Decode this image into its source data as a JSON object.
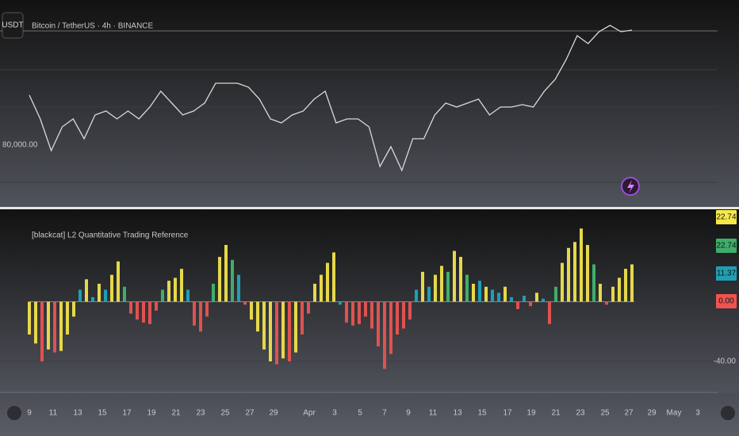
{
  "header": {
    "symbol_button": "USDT",
    "title": "Bitcoin / TetherUS · 4h · BINANCE"
  },
  "price_chart": {
    "type": "line",
    "color": "#d9d9d9",
    "values": [
      86175,
      83234,
      79312,
      82254,
      83234,
      80783,
      83724,
      84214,
      83234,
      84214,
      83234,
      84705,
      86665,
      85195,
      83724,
      84214,
      85195,
      87644,
      87644,
      87644,
      87156,
      85685,
      83234,
      82744,
      83724,
      84214,
      85685,
      86665,
      82744,
      83234,
      83234,
      82254,
      77352,
      79803,
      76861,
      80783,
      80783,
      83724,
      85195,
      84705,
      85195,
      85685,
      83724,
      84705,
      84705,
      84999,
      84705,
      86665,
      88136,
      90587,
      93528,
      92548,
      94019,
      94803,
      94019,
      94215
    ],
    "ylim": [
      72250,
      97940
    ],
    "yticks": [
      {
        "value": 80000,
        "label": "80,000.00"
      }
    ]
  },
  "indicator": {
    "type": "bar",
    "title": "[blackcat] L2 Quantitative Trading Reference",
    "values": [
      -22,
      -28,
      -40,
      -32,
      -34,
      -33,
      -22,
      -10,
      8,
      15,
      3,
      12,
      8,
      18,
      27,
      10,
      -8,
      -12,
      -14,
      -15,
      -6,
      8,
      14,
      16,
      22,
      8,
      -16,
      -20,
      -10,
      12,
      30,
      38,
      28,
      18,
      -2,
      -12,
      -20,
      -32,
      -40,
      -42,
      -38,
      -40,
      -34,
      -22,
      -8,
      12,
      18,
      26,
      33,
      -2,
      -14,
      -16,
      -15,
      -10,
      -18,
      -30,
      -45,
      -35,
      -22,
      -18,
      -12,
      8,
      20,
      10,
      18,
      24,
      20,
      34,
      30,
      18,
      12,
      14,
      10,
      8,
      6,
      10,
      3,
      -5,
      4,
      -3,
      6,
      2,
      -15,
      10,
      26,
      36,
      40,
      49,
      38,
      25,
      12,
      -2,
      10,
      16,
      22,
      25
    ],
    "colors": [
      "#e6d84a",
      "#e6d84a",
      "#e0524f",
      "#e6d84a",
      "#e0524f",
      "#e6d84a",
      "#e6d84a",
      "#e6d84a",
      "#1e9fb4",
      "#e6d84a",
      "#1e9fb4",
      "#e6d84a",
      "#1e9fb4",
      "#e6d84a",
      "#e6d84a",
      "#3fae6a",
      "#e0524f",
      "#e0524f",
      "#e0524f",
      "#e0524f",
      "#e0524f",
      "#3fae6a",
      "#e6d84a",
      "#e6d84a",
      "#e6d84a",
      "#1e9fb4",
      "#e0524f",
      "#e0524f",
      "#e0524f",
      "#3fae6a",
      "#e6d84a",
      "#e6d84a",
      "#3fae6a",
      "#1e9fb4",
      "#e0524f",
      "#e6d84a",
      "#e6d84a",
      "#e6d84a",
      "#e6d84a",
      "#e0524f",
      "#e6d84a",
      "#e0524f",
      "#e6d84a",
      "#e0524f",
      "#e0524f",
      "#e6d84a",
      "#e6d84a",
      "#e6d84a",
      "#e6d84a",
      "#1e9fb4",
      "#e0524f",
      "#e0524f",
      "#e0524f",
      "#e0524f",
      "#e0524f",
      "#e0524f",
      "#e0524f",
      "#e0524f",
      "#e0524f",
      "#e0524f",
      "#e0524f",
      "#1e9fb4",
      "#e6d84a",
      "#1e9fb4",
      "#e6d84a",
      "#e6d84a",
      "#3fae6a",
      "#e6d84a",
      "#e6d84a",
      "#3fae6a",
      "#e6d84a",
      "#1e9fb4",
      "#e6d84a",
      "#1e9fb4",
      "#1e9fb4",
      "#e6d84a",
      "#1e9fb4",
      "#e0524f",
      "#1e9fb4",
      "#e0524f",
      "#e6d84a",
      "#1e9fb4",
      "#e0524f",
      "#3fae6a",
      "#e6d84a",
      "#e6d84a",
      "#e6d84a",
      "#e6d84a",
      "#e6d84a",
      "#3fae6a",
      "#e6d84a",
      "#e0524f",
      "#e6d84a",
      "#e6d84a",
      "#e6d84a",
      "#e6d84a"
    ],
    "ylim": [
      -61.3,
      61.9
    ],
    "yticks": [
      {
        "value": -40,
        "label": "-40.00"
      }
    ],
    "badges": [
      {
        "label": "22.74",
        "color": "#f5e94a"
      },
      {
        "label": "22.74",
        "color": "#3fae6a"
      },
      {
        "label": "11.37",
        "color": "#1e9fb4"
      },
      {
        "label": "0.00",
        "color": "#ef5350"
      }
    ]
  },
  "x_axis": {
    "labels": [
      "9",
      "11",
      "13",
      "15",
      "17",
      "19",
      "21",
      "23",
      "25",
      "27",
      "29",
      "Apr",
      "3",
      "5",
      "7",
      "9",
      "11",
      "13",
      "15",
      "17",
      "19",
      "21",
      "23",
      "25",
      "27",
      "29",
      "May",
      "3"
    ]
  }
}
